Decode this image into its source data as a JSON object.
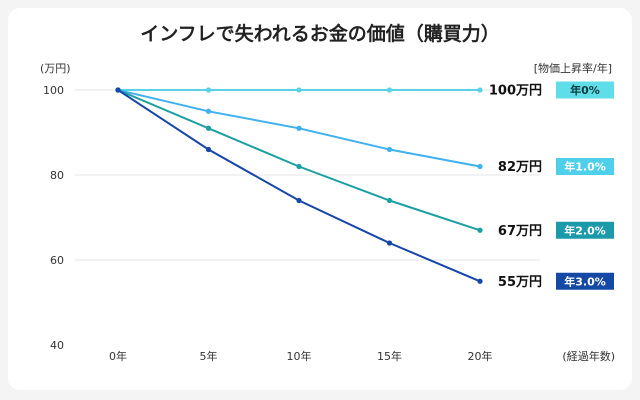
{
  "chart_data": {
    "type": "line",
    "title": "インフレで失われるお金の価値（購買力）",
    "ylabel": "(万円)",
    "xlabel": "(経過年数)",
    "legend_title": "[物価上昇率/年]",
    "categories": [
      "0年",
      "5年",
      "10年",
      "15年",
      "20年"
    ],
    "x": [
      0,
      5,
      10,
      15,
      20
    ],
    "ylim": [
      40,
      100
    ],
    "yticks": [
      40,
      60,
      80,
      100
    ],
    "series": [
      {
        "name": "年0%",
        "values": [
          100,
          100,
          100,
          100,
          100
        ],
        "end_label": "100万円",
        "color": "#5ad2e6",
        "badge_color": "#5fdde9",
        "badge_text_color": "#0b3a3f"
      },
      {
        "name": "年1.0%",
        "values": [
          100,
          95,
          91,
          86,
          82
        ],
        "end_label": "82万円",
        "color": "#3fb1ee",
        "badge_color": "#4fd0ea",
        "badge_text_color": "#ffffff"
      },
      {
        "name": "年2.0%",
        "values": [
          100,
          91,
          82,
          74,
          67
        ],
        "end_label": "67万円",
        "color": "#1a9fa3",
        "badge_color": "#1b9aaa",
        "badge_text_color": "#ffffff"
      },
      {
        "name": "年3.0%",
        "values": [
          100,
          86,
          74,
          64,
          55
        ],
        "end_label": "55万円",
        "color": "#1546a8",
        "badge_color": "#144aa6",
        "badge_text_color": "#ffffff"
      }
    ]
  }
}
